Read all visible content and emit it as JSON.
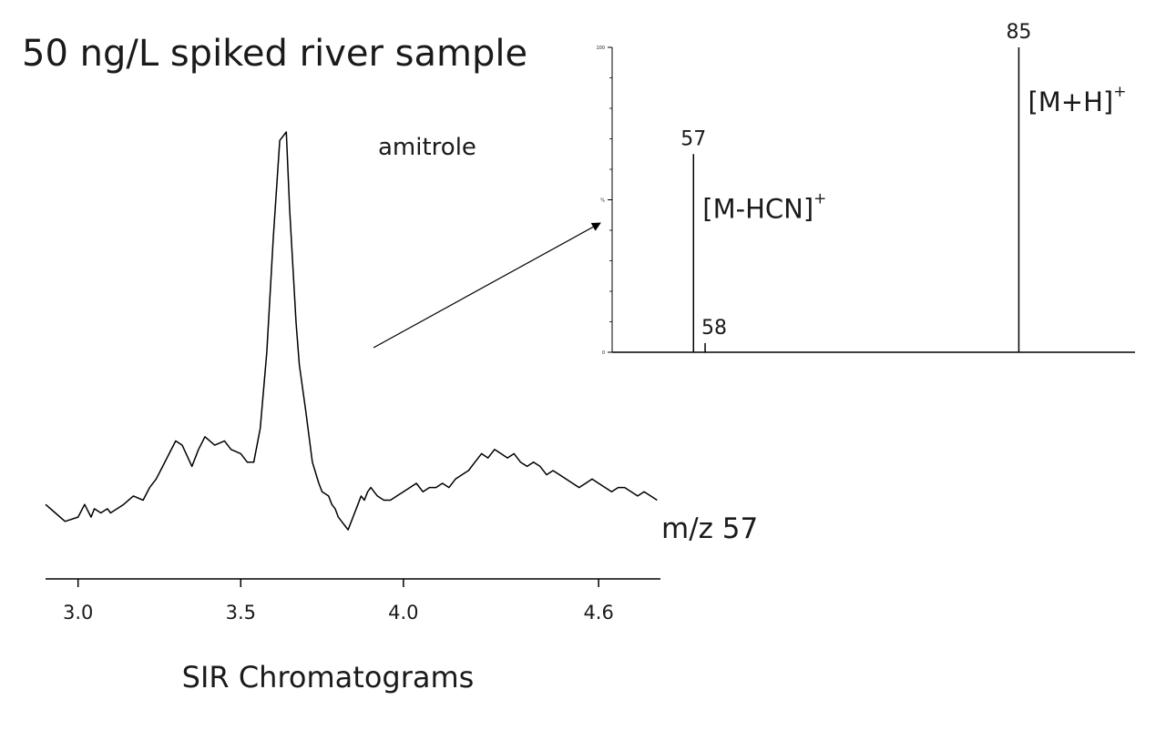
{
  "title": "50 ng/L spiked river sample",
  "chart_data": [
    {
      "type": "line",
      "xlabel": "SIR Chromatograms",
      "xlim": [
        2.9,
        4.79
      ],
      "ylim": [
        0,
        100
      ],
      "x_ticks": [
        "3.0",
        "3.5",
        "4.0",
        "4.6"
      ],
      "trace_label": "m/z 57",
      "peak_label": "amitrole",
      "x": [
        2.9,
        2.93,
        2.96,
        3.0,
        3.02,
        3.04,
        3.05,
        3.07,
        3.09,
        3.1,
        3.12,
        3.14,
        3.17,
        3.2,
        3.22,
        3.24,
        3.26,
        3.28,
        3.3,
        3.32,
        3.35,
        3.37,
        3.39,
        3.42,
        3.45,
        3.47,
        3.5,
        3.52,
        3.54,
        3.56,
        3.58,
        3.6,
        3.62,
        3.64,
        3.65,
        3.67,
        3.68,
        3.7,
        3.72,
        3.74,
        3.75,
        3.77,
        3.78,
        3.79,
        3.8,
        3.81,
        3.82,
        3.83,
        3.84,
        3.85,
        3.86,
        3.87,
        3.88,
        3.89,
        3.9,
        3.91,
        3.92,
        3.94,
        3.96,
        3.98,
        4.0,
        4.02,
        4.04,
        4.06,
        4.08,
        4.1,
        4.12,
        4.14,
        4.16,
        4.18,
        4.2,
        4.22,
        4.24,
        4.26,
        4.28,
        4.3,
        4.32,
        4.34,
        4.36,
        4.38,
        4.4,
        4.42,
        4.44,
        4.46,
        4.48,
        4.5,
        4.52,
        4.54,
        4.56,
        4.58,
        4.6,
        4.62,
        4.64,
        4.66,
        4.68,
        4.7,
        4.72,
        4.74,
        4.76,
        4.78
      ],
      "y": [
        12,
        10,
        8,
        9,
        12,
        9,
        11,
        10,
        11,
        10,
        11,
        12,
        14,
        13,
        16,
        18,
        21,
        24,
        27,
        26,
        21,
        25,
        28,
        26,
        27,
        25,
        24,
        22,
        22,
        30,
        48,
        75,
        98,
        100,
        82,
        55,
        45,
        34,
        22,
        17,
        15,
        14,
        12,
        11,
        9,
        8,
        7,
        6,
        8,
        10,
        12,
        14,
        13,
        15,
        16,
        15,
        14,
        13,
        13,
        14,
        15,
        16,
        17,
        15,
        16,
        16,
        17,
        16,
        18,
        19,
        20,
        22,
        24,
        23,
        25,
        24,
        23,
        24,
        22,
        21,
        22,
        21,
        19,
        20,
        19,
        18,
        17,
        16,
        17,
        18,
        17,
        16,
        15,
        16,
        16,
        15,
        14,
        15,
        14,
        13
      ]
    },
    {
      "type": "bar",
      "xlim": [
        50,
        95
      ],
      "ylim": [
        0,
        100
      ],
      "y_ticks": [
        "0",
        "%",
        "100"
      ],
      "peaks": [
        {
          "mz": 57,
          "intensity": 65,
          "label": "57",
          "ion": "[M-HCN]",
          "charge": "+"
        },
        {
          "mz": 58,
          "intensity": 3,
          "label": "58",
          "ion": "",
          "charge": ""
        },
        {
          "mz": 85,
          "intensity": 100,
          "label": "85",
          "ion": "[M+H]",
          "charge": "+"
        }
      ]
    }
  ]
}
